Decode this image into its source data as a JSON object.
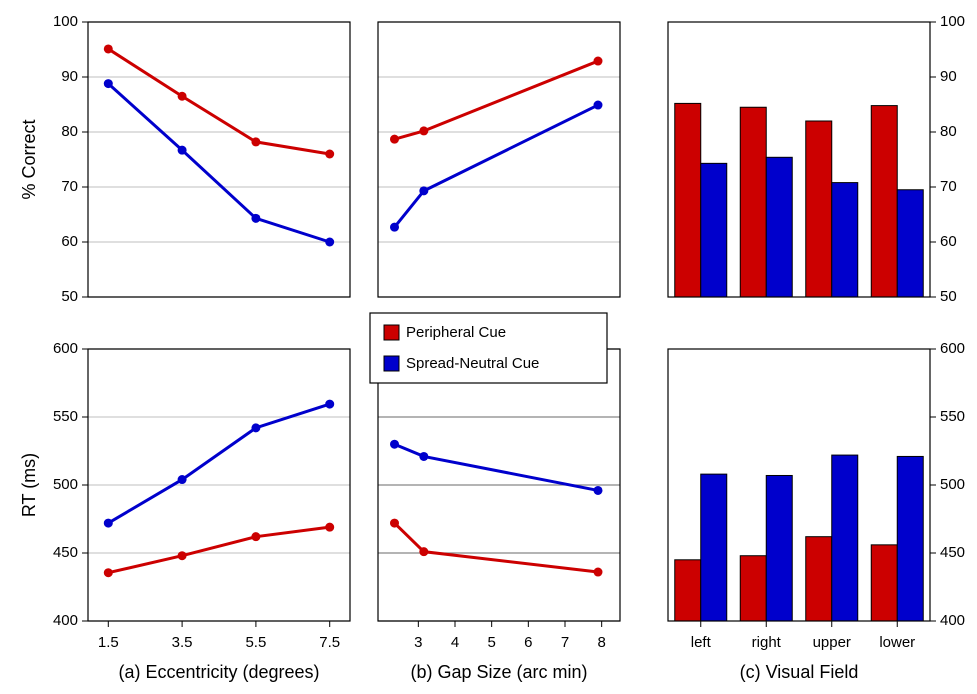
{
  "chart_data": [
    {
      "type": "line",
      "x": [
        1.5,
        3.5,
        5.5,
        7.5
      ],
      "xlim": [
        0.95,
        8.05
      ],
      "ylim": [
        50,
        100
      ],
      "yticks": [
        50,
        60,
        70,
        80,
        90,
        100
      ],
      "yaxis": "left",
      "ylabel": "% Correct",
      "grid": true,
      "grid_color": "#cccccc",
      "series": [
        {
          "name": "Peripheral Cue",
          "color": "#cc0000",
          "values": [
            95.1,
            86.5,
            78.2,
            76.0
          ]
        },
        {
          "name": "Spread-Neutral Cue",
          "color": "#0000cc",
          "values": [
            88.8,
            76.7,
            64.3,
            60.0
          ]
        }
      ]
    },
    {
      "type": "line",
      "x": [
        2.35,
        3.15,
        7.9
      ],
      "xlim": [
        1.9,
        8.5
      ],
      "ylim": [
        50,
        100
      ],
      "yticks": [
        50,
        60,
        70,
        80,
        90,
        100
      ],
      "yaxis": "none",
      "grid": true,
      "grid_color": "#cccccc",
      "series": [
        {
          "name": "Peripheral Cue",
          "color": "#cc0000",
          "values": [
            78.7,
            80.2,
            92.9
          ]
        },
        {
          "name": "Spread-Neutral Cue",
          "color": "#0000cc",
          "values": [
            62.7,
            69.3,
            84.9
          ]
        }
      ]
    },
    {
      "type": "bar",
      "categories": [
        null,
        null,
        null,
        null
      ],
      "ylim": [
        50,
        100
      ],
      "yticks": [
        50,
        60,
        70,
        80,
        90,
        100
      ],
      "yaxis": "right",
      "grid": false,
      "series": [
        {
          "name": "Peripheral Cue",
          "color": "#cc0000",
          "values": [
            85.2,
            84.5,
            82.0,
            84.8
          ]
        },
        {
          "name": "Spread-Neutral Cue",
          "color": "#0000cc",
          "values": [
            74.3,
            75.4,
            70.8,
            69.5
          ]
        }
      ]
    },
    {
      "type": "line",
      "x": [
        1.5,
        3.5,
        5.5,
        7.5
      ],
      "xlim": [
        0.95,
        8.05
      ],
      "xticks": [
        1.5,
        3.5,
        5.5,
        7.5
      ],
      "xlabel": "(a) Eccentricity (degrees)",
      "ylim": [
        400,
        600
      ],
      "yticks": [
        400,
        450,
        500,
        550,
        600
      ],
      "yaxis": "left",
      "ylabel": "RT (ms)",
      "grid": true,
      "grid_color": "#cccccc",
      "series": [
        {
          "name": "Peripheral Cue",
          "color": "#cc0000",
          "values": [
            435.5,
            448,
            462,
            469
          ]
        },
        {
          "name": "Spread-Neutral Cue",
          "color": "#0000cc",
          "values": [
            472,
            504,
            542,
            559.5
          ]
        }
      ]
    },
    {
      "type": "line",
      "x": [
        2.35,
        3.15,
        7.9
      ],
      "xlim": [
        1.9,
        8.5
      ],
      "xticks": [
        3,
        4,
        5,
        6,
        7,
        8
      ],
      "xlabel": "(b) Gap Size (arc min)",
      "ylim": [
        400,
        600
      ],
      "yticks": [
        400,
        450,
        500,
        550,
        600
      ],
      "yaxis": "none",
      "grid": true,
      "grid_color": "#888888",
      "series": [
        {
          "name": "Peripheral Cue",
          "color": "#cc0000",
          "values": [
            472,
            451,
            436
          ]
        },
        {
          "name": "Spread-Neutral Cue",
          "color": "#0000cc",
          "values": [
            530,
            521,
            496
          ]
        }
      ]
    },
    {
      "type": "bar",
      "categories": [
        "left",
        "right",
        "upper",
        "lower"
      ],
      "xlabel": "(c) Visual Field",
      "ylim": [
        400,
        600
      ],
      "yticks": [
        400,
        450,
        500,
        550,
        600
      ],
      "yaxis": "right",
      "grid": false,
      "series": [
        {
          "name": "Peripheral Cue",
          "color": "#cc0000",
          "values": [
            445,
            448,
            462,
            456
          ]
        },
        {
          "name": "Spread-Neutral Cue",
          "color": "#0000cc",
          "values": [
            508,
            507,
            522,
            521
          ]
        }
      ]
    }
  ]
}
